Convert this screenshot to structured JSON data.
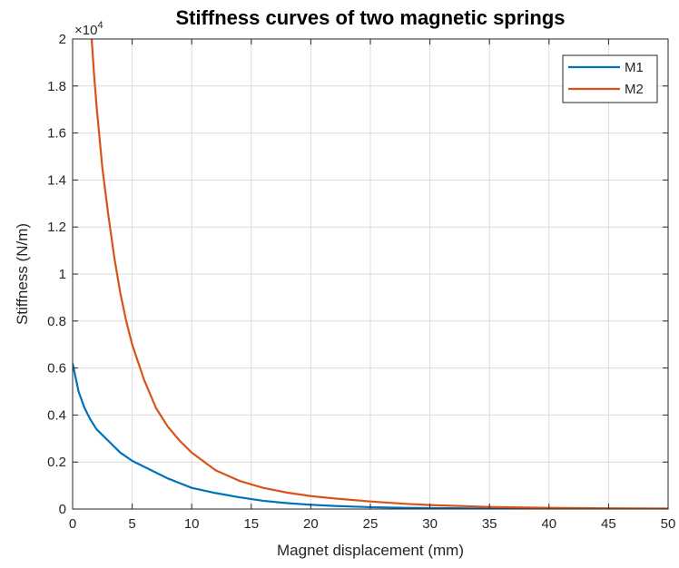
{
  "chart_data": {
    "type": "line",
    "title": "Stiffness curves of two magnetic springs",
    "xlabel": "Magnet displacement (mm)",
    "ylabel": "Stiffness (N/m)",
    "y_exponent_base": "×10",
    "y_exponent_power": "4",
    "xlim": [
      0,
      50
    ],
    "ylim": [
      0,
      2
    ],
    "x_ticks": [
      0,
      5,
      10,
      15,
      20,
      25,
      30,
      35,
      40,
      45,
      50
    ],
    "x_tick_labels": [
      "0",
      "5",
      "10",
      "15",
      "20",
      "25",
      "30",
      "35",
      "40",
      "45",
      "50"
    ],
    "y_ticks": [
      0,
      0.2,
      0.4,
      0.6,
      0.8,
      1,
      1.2,
      1.4,
      1.6,
      1.8,
      2
    ],
    "y_tick_labels": [
      "0",
      "0.2",
      "0.4",
      "0.6",
      "0.8",
      "1",
      "1.2",
      "1.4",
      "1.6",
      "1.8",
      "2"
    ],
    "grid": true,
    "legend_position": "top-right",
    "series": [
      {
        "name": "M1",
        "color": "#0072BD",
        "x": [
          0,
          0.5,
          1,
          1.5,
          2,
          3,
          4,
          5,
          6,
          7,
          8,
          9,
          10,
          12,
          14,
          16,
          18,
          20,
          22,
          25,
          28,
          30,
          35,
          40,
          45,
          50
        ],
        "y": [
          0.62,
          0.5,
          0.43,
          0.38,
          0.34,
          0.29,
          0.24,
          0.205,
          0.18,
          0.155,
          0.13,
          0.11,
          0.09,
          0.068,
          0.05,
          0.035,
          0.025,
          0.018,
          0.013,
          0.008,
          0.005,
          0.004,
          0.002,
          0.001,
          0.0005,
          0.0002
        ]
      },
      {
        "name": "M2",
        "color": "#D95319",
        "x": [
          1.6,
          1.8,
          2,
          2.5,
          3,
          3.5,
          4,
          4.5,
          5,
          6,
          7,
          8,
          9,
          10,
          12,
          14,
          16,
          18,
          20,
          22,
          25,
          28,
          30,
          35,
          40,
          45,
          50
        ],
        "y": [
          2.0,
          1.85,
          1.72,
          1.45,
          1.25,
          1.07,
          0.92,
          0.8,
          0.7,
          0.55,
          0.43,
          0.35,
          0.29,
          0.24,
          0.165,
          0.12,
          0.09,
          0.07,
          0.055,
          0.045,
          0.032,
          0.022,
          0.017,
          0.009,
          0.005,
          0.003,
          0.002
        ]
      }
    ]
  }
}
